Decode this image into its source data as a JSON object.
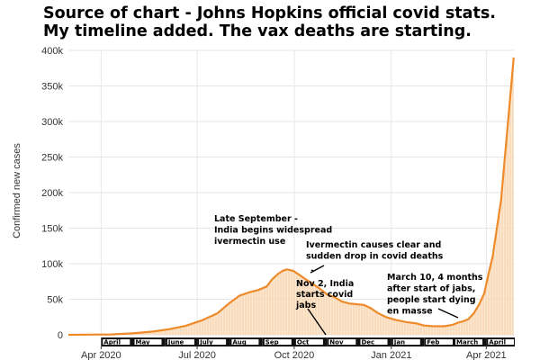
{
  "header": {
    "line1": "Source of chart - Johns Hopkins official covid stats.",
    "line2": "My timeline added.  The vax deaths are starting."
  },
  "colors": {
    "line": "#ee8a2a",
    "fill": "#fbe2c4",
    "bar_strip": "#111111",
    "grid": "#e6e6e6"
  },
  "chart_data": {
    "type": "area",
    "title": "Source of chart - Johns Hopkins official covid stats. My timeline added.  The vax deaths are starting.",
    "ylabel": "Confirmed new cases",
    "xlabel": "",
    "ylim": [
      0,
      400000
    ],
    "xlim": [
      "2020-03-01",
      "2021-04-28"
    ],
    "y_ticks": [
      {
        "value": 0,
        "label": "0"
      },
      {
        "value": 50000,
        "label": "50k"
      },
      {
        "value": 100000,
        "label": "100k"
      },
      {
        "value": 150000,
        "label": "150k"
      },
      {
        "value": 200000,
        "label": "200k"
      },
      {
        "value": 250000,
        "label": "250k"
      },
      {
        "value": 300000,
        "label": "300k"
      },
      {
        "value": 350000,
        "label": "350k"
      },
      {
        "value": 400000,
        "label": "400k"
      }
    ],
    "x_ticks": [
      {
        "date": "2020-04-01",
        "label": "Apr 2020"
      },
      {
        "date": "2020-07-01",
        "label": "Jul 2020"
      },
      {
        "date": "2020-10-01",
        "label": "Oct 2020"
      },
      {
        "date": "2021-01-01",
        "label": "Jan 2021"
      },
      {
        "date": "2021-04-01",
        "label": "Apr 2021"
      }
    ],
    "month_strip": [
      {
        "start": "2020-04-01",
        "end": "2020-05-01",
        "label": "April"
      },
      {
        "start": "2020-05-01",
        "end": "2020-06-01",
        "label": "May"
      },
      {
        "start": "2020-06-01",
        "end": "2020-07-01",
        "label": "June"
      },
      {
        "start": "2020-07-01",
        "end": "2020-08-01",
        "label": "July"
      },
      {
        "start": "2020-08-01",
        "end": "2020-09-01",
        "label": "Aug"
      },
      {
        "start": "2020-09-01",
        "end": "2020-10-01",
        "label": "Sep"
      },
      {
        "start": "2020-10-01",
        "end": "2020-11-01",
        "label": "Oct"
      },
      {
        "start": "2020-11-01",
        "end": "2020-12-01",
        "label": "Nov"
      },
      {
        "start": "2020-12-01",
        "end": "2021-01-01",
        "label": "Dec"
      },
      {
        "start": "2021-01-01",
        "end": "2021-02-01",
        "label": "Jan"
      },
      {
        "start": "2021-02-01",
        "end": "2021-03-01",
        "label": "Feb"
      },
      {
        "start": "2021-03-01",
        "end": "2021-04-01",
        "label": "March"
      },
      {
        "start": "2021-04-01",
        "end": "2021-04-28",
        "label": "April"
      }
    ],
    "series": [
      {
        "name": "",
        "x": [
          "2020-03-01",
          "2020-03-20",
          "2020-04-10",
          "2020-05-01",
          "2020-05-20",
          "2020-06-05",
          "2020-06-20",
          "2020-07-05",
          "2020-07-20",
          "2020-08-01",
          "2020-08-10",
          "2020-08-20",
          "2020-08-28",
          "2020-09-05",
          "2020-09-10",
          "2020-09-16",
          "2020-09-20",
          "2020-09-24",
          "2020-09-30",
          "2020-10-06",
          "2020-10-12",
          "2020-10-18",
          "2020-10-25",
          "2020-11-01",
          "2020-11-08",
          "2020-11-15",
          "2020-11-22",
          "2020-11-29",
          "2020-12-06",
          "2020-12-13",
          "2020-12-20",
          "2020-12-27",
          "2021-01-05",
          "2021-01-15",
          "2021-01-25",
          "2021-02-01",
          "2021-02-10",
          "2021-02-20",
          "2021-02-28",
          "2021-03-05",
          "2021-03-10",
          "2021-03-15",
          "2021-03-20",
          "2021-03-25",
          "2021-03-30",
          "2021-04-03",
          "2021-04-07",
          "2021-04-11",
          "2021-04-15",
          "2021-04-18",
          "2021-04-21",
          "2021-04-24",
          "2021-04-27"
        ],
        "values": [
          0,
          200,
          500,
          2000,
          4500,
          8000,
          12500,
          20000,
          30000,
          45000,
          55000,
          60000,
          63000,
          68000,
          78000,
          86000,
          90000,
          92000,
          90000,
          84000,
          78000,
          72000,
          65000,
          57000,
          53000,
          47000,
          44000,
          43000,
          42000,
          37000,
          30000,
          25000,
          21000,
          18000,
          16000,
          13000,
          12000,
          12000,
          14000,
          17000,
          19000,
          22000,
          30000,
          42000,
          58000,
          85000,
          110000,
          150000,
          190000,
          240000,
          290000,
          340000,
          390000
        ]
      }
    ],
    "annotations": [
      {
        "lines": [
          "Late September -",
          "India begins widespread",
          "ivermectin use"
        ]
      },
      {
        "lines": [
          "Ivermectin causes clear and",
          "sudden drop in covid deaths"
        ]
      },
      {
        "lines": [
          "Nov 2, India",
          "starts covid",
          "jabs"
        ]
      },
      {
        "lines": [
          "March 10, 4 months",
          "after start of jabs,",
          "people start dying",
          "en masse"
        ]
      }
    ]
  }
}
